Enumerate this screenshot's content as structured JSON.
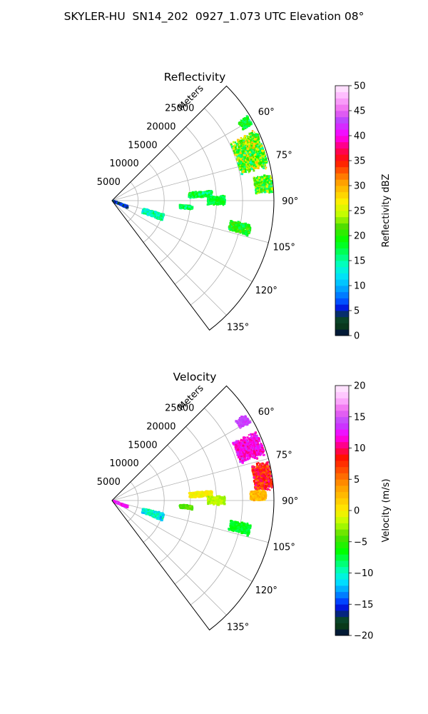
{
  "figure": {
    "title": "SKYLER-HU  SN14_202  0927_1.073 UTC Elevation 08°"
  },
  "chart_data": [
    {
      "type": "heatmap",
      "subtype": "radar-sector-ppi",
      "title": "Reflectivity",
      "radial_label": "Meters",
      "radial_ticks": [
        5000,
        10000,
        15000,
        20000,
        25000
      ],
      "radial_tick_labels": [
        "5000",
        "10000",
        "15000",
        "20000",
        "25000"
      ],
      "azimuth_ticks": [
        60,
        75,
        90,
        105,
        120,
        135
      ],
      "azimuth_tick_labels": [
        "60°",
        "75°",
        "90°",
        "105°",
        "120°",
        "135°"
      ],
      "azimuth_range": [
        45,
        143
      ],
      "range_max": 31000,
      "grid": true,
      "colorbar": {
        "label": "Reflectivity dBZ",
        "min": 0,
        "max": 50,
        "ticks": [
          0,
          5,
          10,
          15,
          20,
          25,
          30,
          35,
          40,
          45,
          50
        ],
        "tick_labels": [
          "0",
          "5",
          "10",
          "15",
          "20",
          "25",
          "30",
          "35",
          "40",
          "45",
          "50"
        ],
        "stops": [
          {
            "v": 0,
            "c": "#000c44"
          },
          {
            "v": 2,
            "c": "#0a3a1a"
          },
          {
            "v": 4,
            "c": "#0a4a32"
          },
          {
            "v": 5,
            "c": "#0000cc"
          },
          {
            "v": 6.5,
            "c": "#0044ff"
          },
          {
            "v": 9,
            "c": "#0099ff"
          },
          {
            "v": 11.5,
            "c": "#00ddff"
          },
          {
            "v": 14,
            "c": "#00ffcc"
          },
          {
            "v": 16,
            "c": "#00ff77"
          },
          {
            "v": 19,
            "c": "#00ff00"
          },
          {
            "v": 22,
            "c": "#55dd00"
          },
          {
            "v": 24,
            "c": "#bbff00"
          },
          {
            "v": 27,
            "c": "#ffee00"
          },
          {
            "v": 31,
            "c": "#ff9900"
          },
          {
            "v": 35,
            "c": "#ff1100"
          },
          {
            "v": 37.5,
            "c": "#ff0066"
          },
          {
            "v": 40,
            "c": "#ff00ff"
          },
          {
            "v": 43,
            "c": "#bb44ff"
          },
          {
            "v": 45,
            "c": "#ee66ee"
          },
          {
            "v": 48,
            "c": "#ffbbff"
          },
          {
            "v": 50,
            "c": "#ffeeff"
          }
        ]
      },
      "echoes": [
        {
          "az_center": 71,
          "az_width": 15,
          "r_start": 25200,
          "r_end": 30600,
          "min": 14,
          "max": 30
        },
        {
          "az_center": 60,
          "az_width": 4,
          "r_start": 28500,
          "r_end": 30500,
          "min": 15,
          "max": 22
        },
        {
          "az_center": 84,
          "az_width": 7,
          "r_start": 27500,
          "r_end": 30800,
          "min": 15,
          "max": 26
        },
        {
          "az_center": 108,
          "az_width": 8,
          "r_start": 6200,
          "r_end": 10300,
          "min": 11,
          "max": 18
        },
        {
          "az_center": 86,
          "az_width": 4,
          "r_start": 14800,
          "r_end": 19200,
          "min": 14,
          "max": 21
        },
        {
          "az_center": 102,
          "az_width": 5,
          "r_start": 23000,
          "r_end": 27000,
          "min": 16,
          "max": 23
        },
        {
          "az_center": 90,
          "az_width": 5,
          "r_start": 18300,
          "r_end": 21600,
          "min": 16,
          "max": 20
        },
        {
          "az_center": 95,
          "az_width": 3,
          "r_start": 13000,
          "r_end": 15500,
          "min": 14,
          "max": 19
        },
        {
          "az_center": 112,
          "az_width": 7,
          "r_start": 200,
          "r_end": 3200,
          "min": 3,
          "max": 8
        }
      ]
    },
    {
      "type": "heatmap",
      "subtype": "radar-sector-ppi",
      "title": "Velocity",
      "radial_label": "Meters",
      "radial_ticks": [
        5000,
        10000,
        15000,
        20000,
        25000
      ],
      "radial_tick_labels": [
        "5000",
        "10000",
        "15000",
        "20000",
        "25000"
      ],
      "azimuth_ticks": [
        60,
        75,
        90,
        105,
        120,
        135
      ],
      "azimuth_tick_labels": [
        "60°",
        "75°",
        "90°",
        "105°",
        "120°",
        "135°"
      ],
      "azimuth_range": [
        45,
        143
      ],
      "range_max": 31000,
      "grid": true,
      "colorbar": {
        "label": "Velocity (m/s)",
        "min": -20,
        "max": 20,
        "ticks": [
          -20,
          -15,
          -10,
          -5,
          0,
          5,
          10,
          15,
          20
        ],
        "tick_labels": [
          "−20",
          "−15",
          "−10",
          "−5",
          "0",
          "5",
          "10",
          "15",
          "20"
        ],
        "stops": [
          {
            "v": -20,
            "c": "#000c44"
          },
          {
            "v": -18.5,
            "c": "#0a3a1a"
          },
          {
            "v": -17,
            "c": "#0a4a32"
          },
          {
            "v": -16,
            "c": "#0000cc"
          },
          {
            "v": -14.5,
            "c": "#0044ff"
          },
          {
            "v": -13,
            "c": "#0099ff"
          },
          {
            "v": -11.5,
            "c": "#00ddff"
          },
          {
            "v": -10,
            "c": "#00ffcc"
          },
          {
            "v": -8.5,
            "c": "#00ff77"
          },
          {
            "v": -6.5,
            "c": "#00ff00"
          },
          {
            "v": -4,
            "c": "#55dd00"
          },
          {
            "v": -2,
            "c": "#bbff00"
          },
          {
            "v": 0,
            "c": "#ffee00"
          },
          {
            "v": 4,
            "c": "#ff9900"
          },
          {
            "v": 8.5,
            "c": "#ff1100"
          },
          {
            "v": 10,
            "c": "#ff0066"
          },
          {
            "v": 12,
            "c": "#ff00ff"
          },
          {
            "v": 14,
            "c": "#bb44ff"
          },
          {
            "v": 16,
            "c": "#ee66ee"
          },
          {
            "v": 18,
            "c": "#ffbbff"
          },
          {
            "v": 20,
            "c": "#ffeeff"
          }
        ]
      },
      "echoes": [
        {
          "az_center": 59,
          "az_width": 4,
          "r_start": 28200,
          "r_end": 30400,
          "min": 13,
          "max": 15
        },
        {
          "az_center": 69,
          "az_width": 10,
          "r_start": 25600,
          "r_end": 30600,
          "min": 10,
          "max": 14
        },
        {
          "az_center": 81,
          "az_width": 11,
          "r_start": 27500,
          "r_end": 30800,
          "min": 5,
          "max": 11
        },
        {
          "az_center": 88,
          "az_width": 4,
          "r_start": 26500,
          "r_end": 29500,
          "min": 1,
          "max": 4
        },
        {
          "az_center": 108,
          "az_width": 8,
          "r_start": 6200,
          "r_end": 10300,
          "min": -13,
          "max": -8
        },
        {
          "az_center": 86,
          "az_width": 4,
          "r_start": 14800,
          "r_end": 19200,
          "min": -1,
          "max": 1
        },
        {
          "az_center": 90,
          "az_width": 5,
          "r_start": 18300,
          "r_end": 21600,
          "min": -3,
          "max": -1
        },
        {
          "az_center": 102,
          "az_width": 5,
          "r_start": 23000,
          "r_end": 27000,
          "min": -8,
          "max": -6
        },
        {
          "az_center": 95,
          "az_width": 3,
          "r_start": 13000,
          "r_end": 15500,
          "min": -5,
          "max": -3
        },
        {
          "az_center": 112,
          "az_width": 7,
          "r_start": 200,
          "r_end": 3200,
          "min": 11,
          "max": 15
        }
      ]
    }
  ]
}
